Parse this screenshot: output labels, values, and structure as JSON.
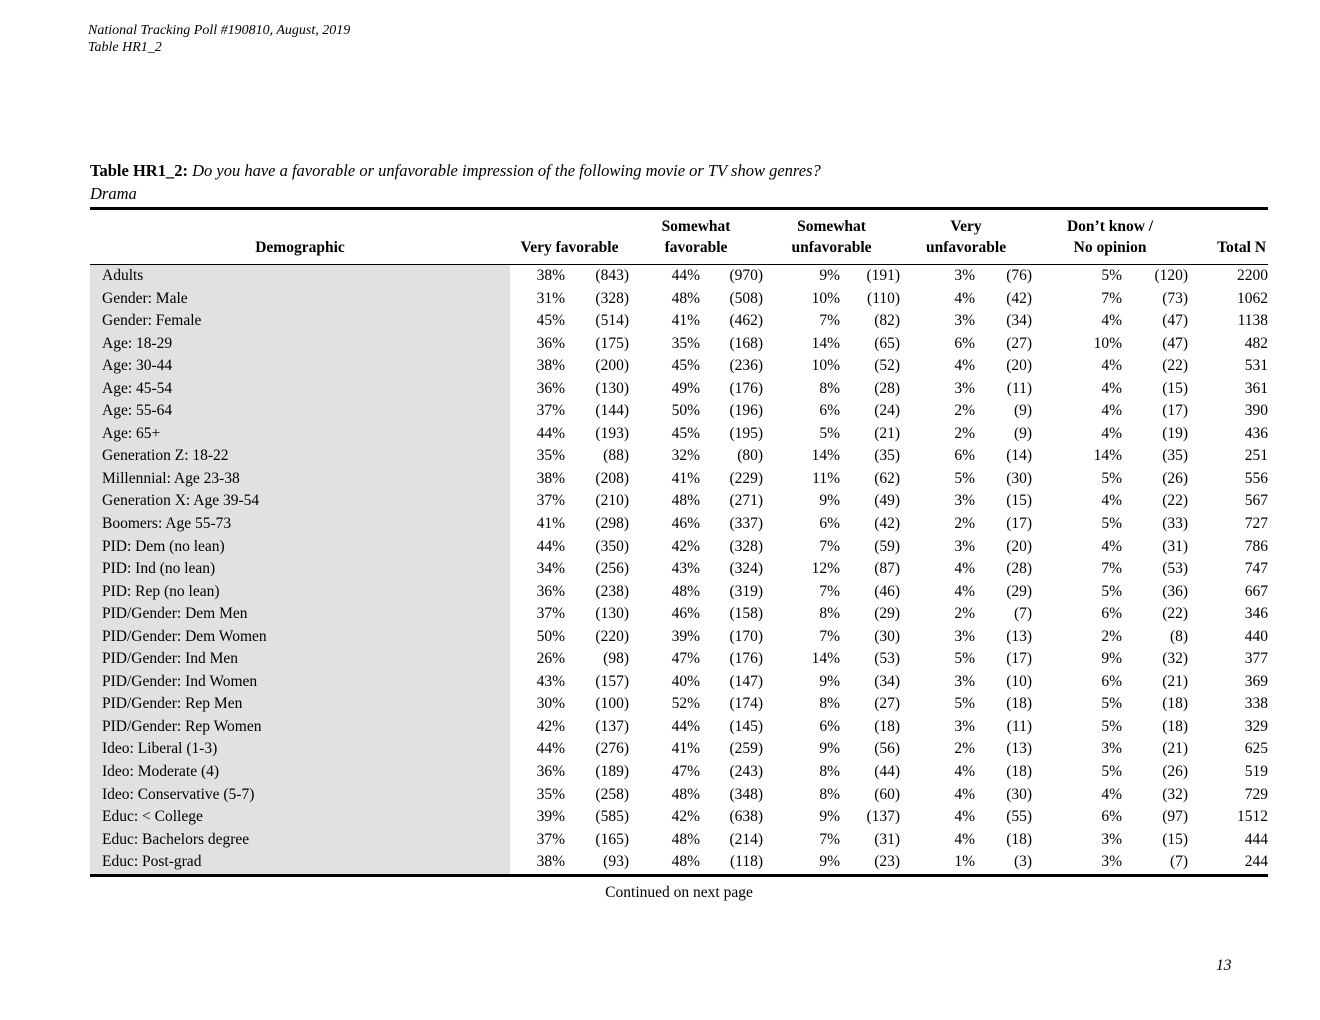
{
  "colors": {
    "row_shade": "#e1e1e1",
    "text": "#000000",
    "background": "#ffffff"
  },
  "doc_header": {
    "line1": "National Tracking Poll #190810, August, 2019",
    "line2": "Table HR1_2"
  },
  "title": {
    "prefix": "Table HR1_2:",
    "question": "Do you have a favorable or unfavorable impression of the following movie or TV show genres?",
    "subtitle": "Drama"
  },
  "table": {
    "headers": {
      "demographic": "Demographic",
      "groups": [
        {
          "line1": "",
          "line2": "Very favorable"
        },
        {
          "line1": "Somewhat",
          "line2": "favorable"
        },
        {
          "line1": "Somewhat",
          "line2": "unfavorable"
        },
        {
          "line1": "Very",
          "line2": "unfavorable"
        },
        {
          "line1": "Don’t know /",
          "line2": "No opinion"
        }
      ],
      "total": "Total N"
    },
    "rows": [
      {
        "label": "Adults",
        "cells": [
          "38%",
          "(843)",
          "44%",
          "(970)",
          "9%",
          "(191)",
          "3%",
          "(76)",
          "5%",
          "(120)"
        ],
        "total": "2200"
      },
      {
        "label": "Gender: Male",
        "cells": [
          "31%",
          "(328)",
          "48%",
          "(508)",
          "10%",
          "(110)",
          "4%",
          "(42)",
          "7%",
          "(73)"
        ],
        "total": "1062"
      },
      {
        "label": "Gender: Female",
        "cells": [
          "45%",
          "(514)",
          "41%",
          "(462)",
          "7%",
          "(82)",
          "3%",
          "(34)",
          "4%",
          "(47)"
        ],
        "total": "1138"
      },
      {
        "label": "Age: 18-29",
        "cells": [
          "36%",
          "(175)",
          "35%",
          "(168)",
          "14%",
          "(65)",
          "6%",
          "(27)",
          "10%",
          "(47)"
        ],
        "total": "482"
      },
      {
        "label": "Age: 30-44",
        "cells": [
          "38%",
          "(200)",
          "45%",
          "(236)",
          "10%",
          "(52)",
          "4%",
          "(20)",
          "4%",
          "(22)"
        ],
        "total": "531"
      },
      {
        "label": "Age: 45-54",
        "cells": [
          "36%",
          "(130)",
          "49%",
          "(176)",
          "8%",
          "(28)",
          "3%",
          "(11)",
          "4%",
          "(15)"
        ],
        "total": "361"
      },
      {
        "label": "Age: 55-64",
        "cells": [
          "37%",
          "(144)",
          "50%",
          "(196)",
          "6%",
          "(24)",
          "2%",
          "(9)",
          "4%",
          "(17)"
        ],
        "total": "390"
      },
      {
        "label": "Age: 65+",
        "cells": [
          "44%",
          "(193)",
          "45%",
          "(195)",
          "5%",
          "(21)",
          "2%",
          "(9)",
          "4%",
          "(19)"
        ],
        "total": "436"
      },
      {
        "label": "Generation Z: 18-22",
        "cells": [
          "35%",
          "(88)",
          "32%",
          "(80)",
          "14%",
          "(35)",
          "6%",
          "(14)",
          "14%",
          "(35)"
        ],
        "total": "251"
      },
      {
        "label": "Millennial: Age 23-38",
        "cells": [
          "38%",
          "(208)",
          "41%",
          "(229)",
          "11%",
          "(62)",
          "5%",
          "(30)",
          "5%",
          "(26)"
        ],
        "total": "556"
      },
      {
        "label": "Generation X: Age 39-54",
        "cells": [
          "37%",
          "(210)",
          "48%",
          "(271)",
          "9%",
          "(49)",
          "3%",
          "(15)",
          "4%",
          "(22)"
        ],
        "total": "567"
      },
      {
        "label": "Boomers: Age 55-73",
        "cells": [
          "41%",
          "(298)",
          "46%",
          "(337)",
          "6%",
          "(42)",
          "2%",
          "(17)",
          "5%",
          "(33)"
        ],
        "total": "727"
      },
      {
        "label": "PID: Dem (no lean)",
        "cells": [
          "44%",
          "(350)",
          "42%",
          "(328)",
          "7%",
          "(59)",
          "3%",
          "(20)",
          "4%",
          "(31)"
        ],
        "total": "786"
      },
      {
        "label": "PID: Ind (no lean)",
        "cells": [
          "34%",
          "(256)",
          "43%",
          "(324)",
          "12%",
          "(87)",
          "4%",
          "(28)",
          "7%",
          "(53)"
        ],
        "total": "747"
      },
      {
        "label": "PID: Rep (no lean)",
        "cells": [
          "36%",
          "(238)",
          "48%",
          "(319)",
          "7%",
          "(46)",
          "4%",
          "(29)",
          "5%",
          "(36)"
        ],
        "total": "667"
      },
      {
        "label": "PID/Gender: Dem Men",
        "cells": [
          "37%",
          "(130)",
          "46%",
          "(158)",
          "8%",
          "(29)",
          "2%",
          "(7)",
          "6%",
          "(22)"
        ],
        "total": "346"
      },
      {
        "label": "PID/Gender: Dem Women",
        "cells": [
          "50%",
          "(220)",
          "39%",
          "(170)",
          "7%",
          "(30)",
          "3%",
          "(13)",
          "2%",
          "(8)"
        ],
        "total": "440"
      },
      {
        "label": "PID/Gender: Ind Men",
        "cells": [
          "26%",
          "(98)",
          "47%",
          "(176)",
          "14%",
          "(53)",
          "5%",
          "(17)",
          "9%",
          "(32)"
        ],
        "total": "377"
      },
      {
        "label": "PID/Gender: Ind Women",
        "cells": [
          "43%",
          "(157)",
          "40%",
          "(147)",
          "9%",
          "(34)",
          "3%",
          "(10)",
          "6%",
          "(21)"
        ],
        "total": "369"
      },
      {
        "label": "PID/Gender: Rep Men",
        "cells": [
          "30%",
          "(100)",
          "52%",
          "(174)",
          "8%",
          "(27)",
          "5%",
          "(18)",
          "5%",
          "(18)"
        ],
        "total": "338"
      },
      {
        "label": "PID/Gender: Rep Women",
        "cells": [
          "42%",
          "(137)",
          "44%",
          "(145)",
          "6%",
          "(18)",
          "3%",
          "(11)",
          "5%",
          "(18)"
        ],
        "total": "329"
      },
      {
        "label": "Ideo: Liberal (1-3)",
        "cells": [
          "44%",
          "(276)",
          "41%",
          "(259)",
          "9%",
          "(56)",
          "2%",
          "(13)",
          "3%",
          "(21)"
        ],
        "total": "625"
      },
      {
        "label": "Ideo: Moderate (4)",
        "cells": [
          "36%",
          "(189)",
          "47%",
          "(243)",
          "8%",
          "(44)",
          "4%",
          "(18)",
          "5%",
          "(26)"
        ],
        "total": "519"
      },
      {
        "label": "Ideo: Conservative (5-7)",
        "cells": [
          "35%",
          "(258)",
          "48%",
          "(348)",
          "8%",
          "(60)",
          "4%",
          "(30)",
          "4%",
          "(32)"
        ],
        "total": "729"
      },
      {
        "label": "Educ: < College",
        "cells": [
          "39%",
          "(585)",
          "42%",
          "(638)",
          "9%",
          "(137)",
          "4%",
          "(55)",
          "6%",
          "(97)"
        ],
        "total": "1512"
      },
      {
        "label": "Educ: Bachelors degree",
        "cells": [
          "37%",
          "(165)",
          "48%",
          "(214)",
          "7%",
          "(31)",
          "4%",
          "(18)",
          "3%",
          "(15)"
        ],
        "total": "444"
      },
      {
        "label": "Educ: Post-grad",
        "cells": [
          "38%",
          "(93)",
          "48%",
          "(118)",
          "9%",
          "(23)",
          "1%",
          "(3)",
          "3%",
          "(7)"
        ],
        "total": "244"
      }
    ]
  },
  "footer": {
    "continued": "Continued on next page",
    "page_number": "13"
  }
}
